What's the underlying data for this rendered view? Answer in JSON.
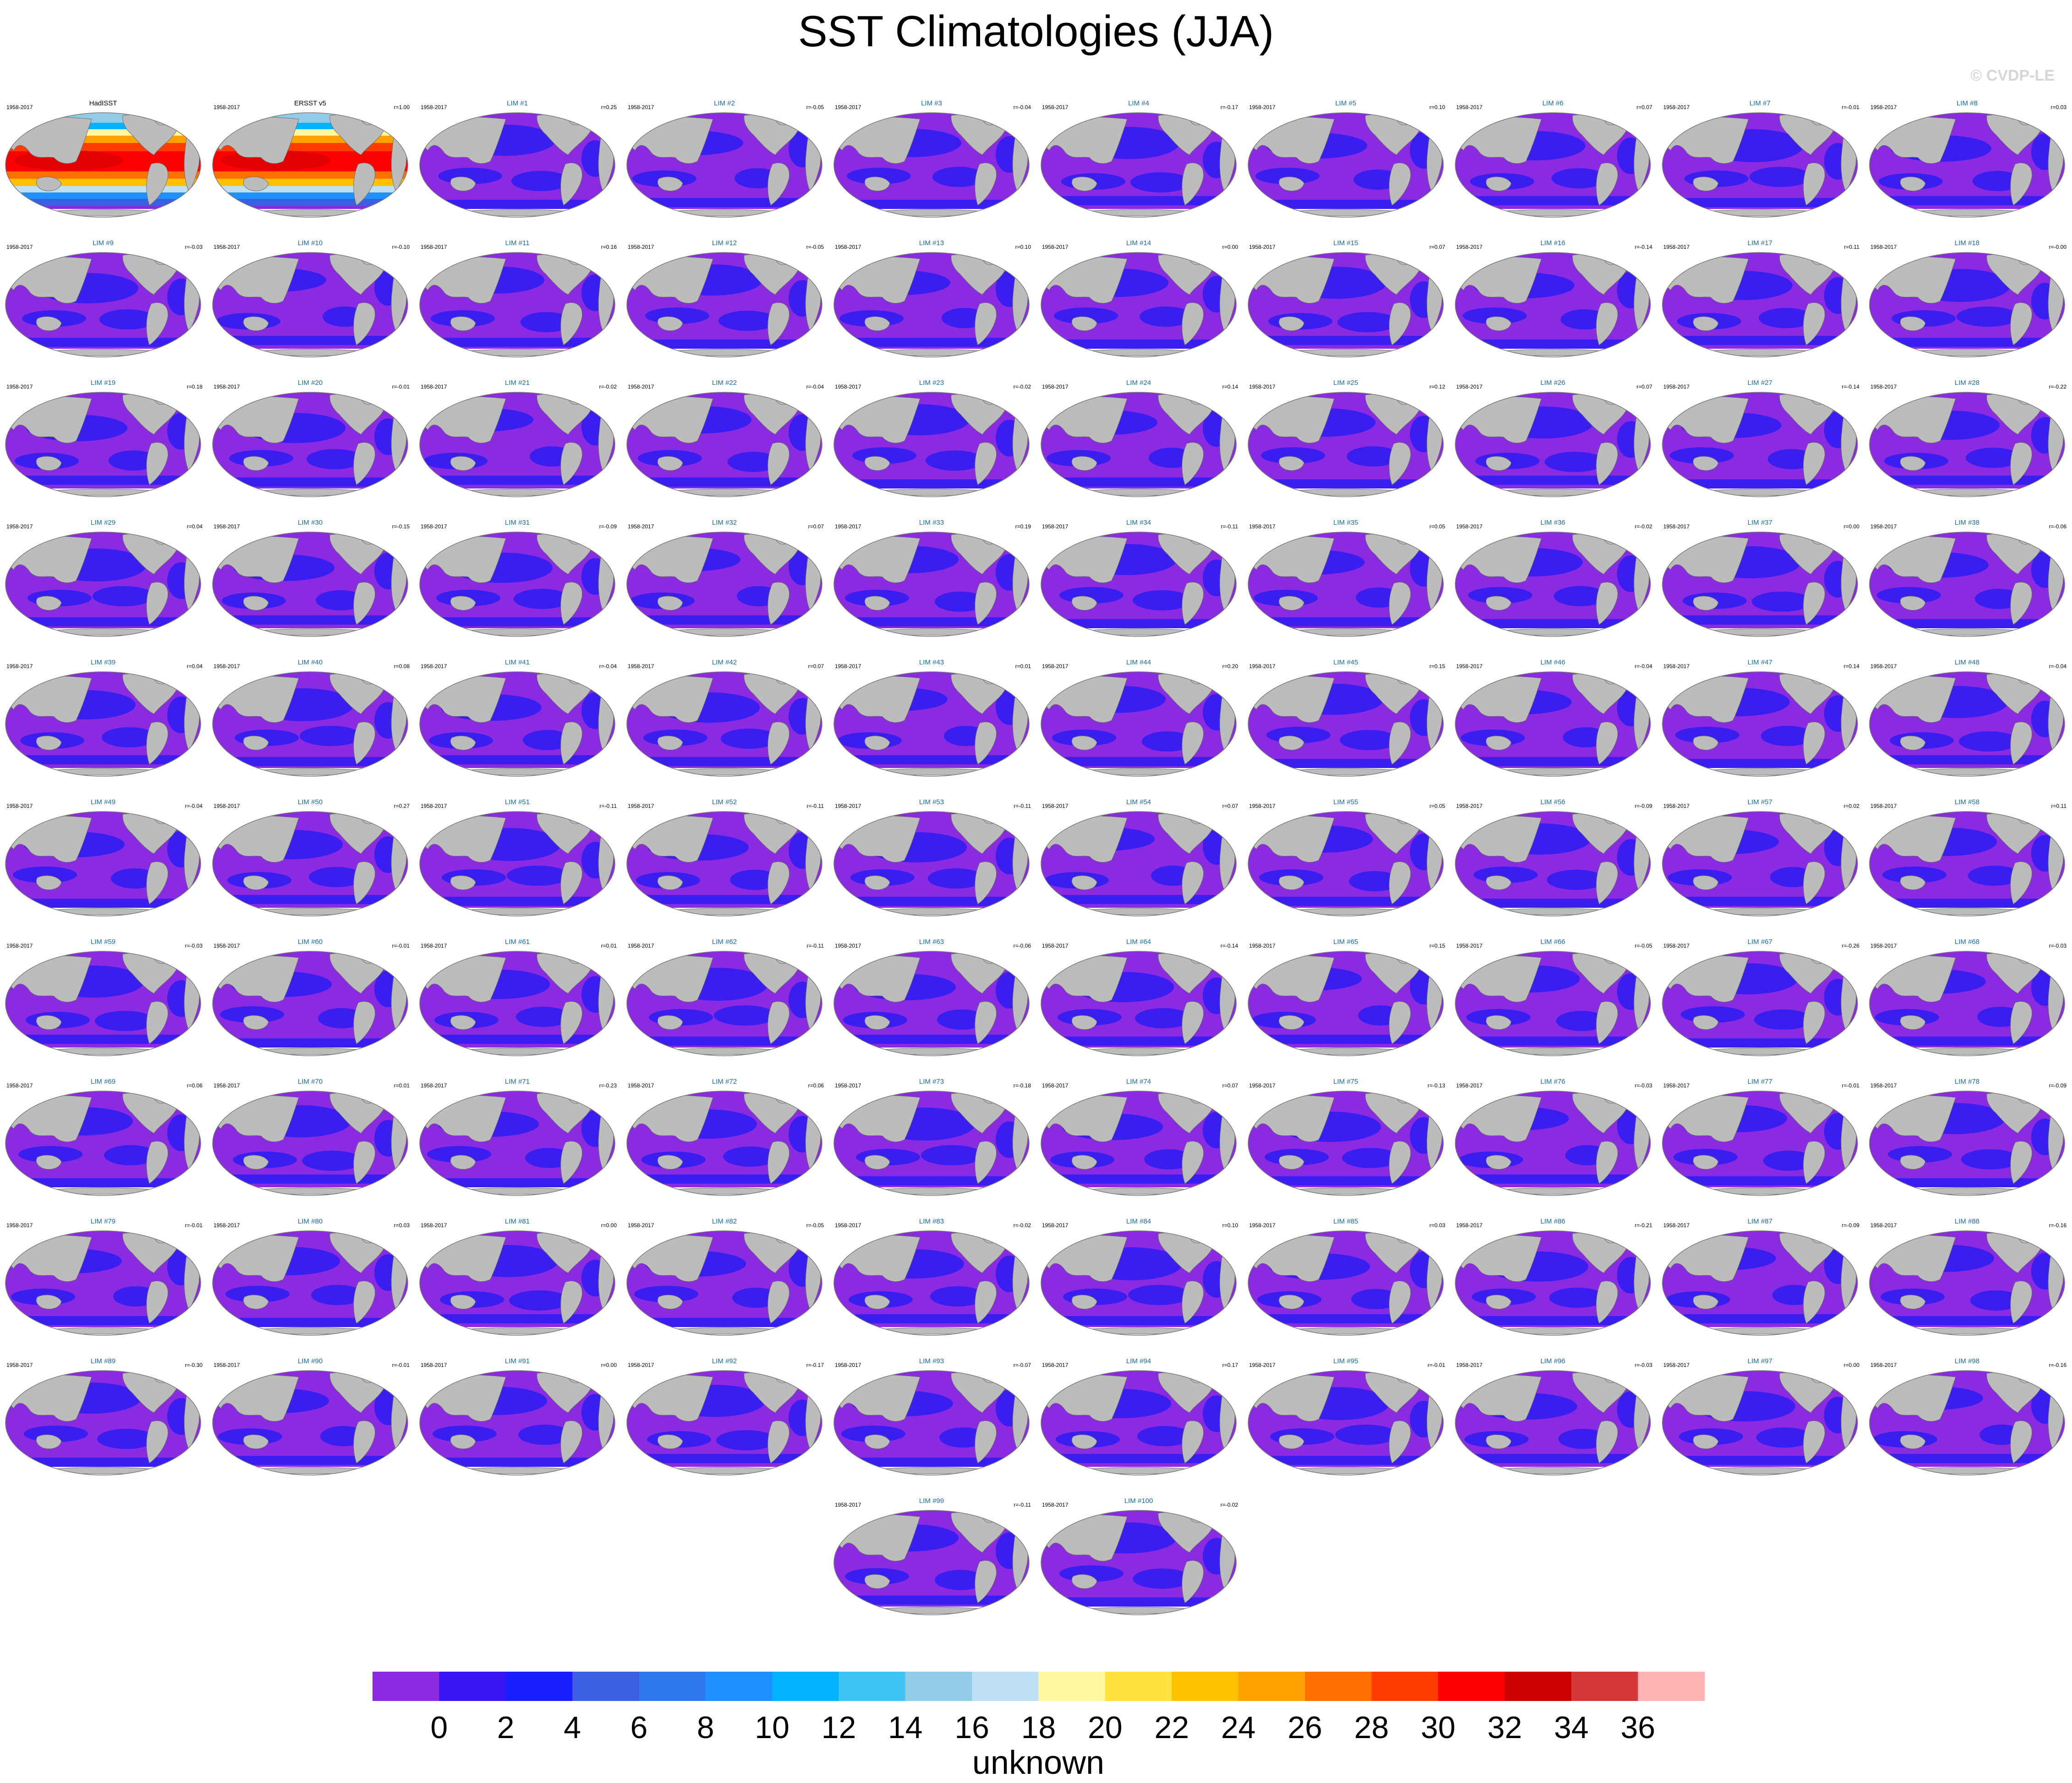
{
  "title": "SST Climatologies (JJA)",
  "credit": "© CVDP-LE",
  "colors": {
    "ocean_low": "#8a2be2",
    "ocean_mid": "#3a1df0",
    "land": "#bcbcbc",
    "title_blue": "#1a6aa0",
    "panel_border": "#7a7a7a",
    "sea_ice_gap": "#ffffff"
  },
  "colorbar": {
    "label": "unknown",
    "tick_labels": [
      "0",
      "2",
      "4",
      "6",
      "8",
      "10",
      "12",
      "14",
      "16",
      "18",
      "20",
      "22",
      "24",
      "26",
      "28",
      "30",
      "32",
      "34",
      "36"
    ],
    "colors": [
      "#8a2be2",
      "#3a14f0",
      "#1a1eff",
      "#3c5ee0",
      "#2f78ee",
      "#1e90ff",
      "#00b2ff",
      "#40c4f4",
      "#90cce6",
      "#bde0f2",
      "#fff8a0",
      "#ffe140",
      "#ffc000",
      "#ffa000",
      "#ff7000",
      "#ff3c00",
      "#ff0000",
      "#cc0000",
      "#d43838",
      "#ffb3b3"
    ]
  },
  "chart_data": {
    "type": "heatmap",
    "title": "SST Climatologies (JJA)",
    "colorbar_label": "unknown",
    "colorbar_levels": [
      0,
      2,
      4,
      6,
      8,
      10,
      12,
      14,
      16,
      18,
      20,
      22,
      24,
      26,
      28,
      30,
      32,
      34,
      36
    ],
    "panels": [
      {
        "period": "1958-2017",
        "name": "HadISST",
        "corr": ""
      },
      {
        "period": "1958-2017",
        "name": "ERSST v5",
        "corr": "r=1.00"
      },
      {
        "period": "1958-2017",
        "name": "LIM #1",
        "corr": "r=0.25"
      },
      {
        "period": "1958-2017",
        "name": "LIM #2",
        "corr": "r=-0.05"
      },
      {
        "period": "1958-2017",
        "name": "LIM #3",
        "corr": "r=-0.04"
      },
      {
        "period": "1958-2017",
        "name": "LIM #4",
        "corr": "r=-0.17"
      },
      {
        "period": "1958-2017",
        "name": "LIM #5",
        "corr": "r=0.10"
      },
      {
        "period": "1958-2017",
        "name": "LIM #6",
        "corr": "r=0.07"
      },
      {
        "period": "1958-2017",
        "name": "LIM #7",
        "corr": "r=-0.01"
      },
      {
        "period": "1958-2017",
        "name": "LIM #8",
        "corr": "r=0.03"
      },
      {
        "period": "1958-2017",
        "name": "LIM #9",
        "corr": "r=-0.03"
      },
      {
        "period": "1958-2017",
        "name": "LIM #10",
        "corr": "r=-0.10"
      },
      {
        "period": "1958-2017",
        "name": "LIM #11",
        "corr": "r=0.16"
      },
      {
        "period": "1958-2017",
        "name": "LIM #12",
        "corr": "r=-0.05"
      },
      {
        "period": "1958-2017",
        "name": "LIM #13",
        "corr": "r=0.10"
      },
      {
        "period": "1958-2017",
        "name": "LIM #14",
        "corr": "r=0.00"
      },
      {
        "period": "1958-2017",
        "name": "LIM #15",
        "corr": "r=0.07"
      },
      {
        "period": "1958-2017",
        "name": "LIM #16",
        "corr": "r=-0.14"
      },
      {
        "period": "1958-2017",
        "name": "LIM #17",
        "corr": "r=0.11"
      },
      {
        "period": "1958-2017",
        "name": "LIM #18",
        "corr": "r=-0.00"
      },
      {
        "period": "1958-2017",
        "name": "LIM #19",
        "corr": "r=0.18"
      },
      {
        "period": "1958-2017",
        "name": "LIM #20",
        "corr": "r=-0.01"
      },
      {
        "period": "1958-2017",
        "name": "LIM #21",
        "corr": "r=-0.02"
      },
      {
        "period": "1958-2017",
        "name": "LIM #22",
        "corr": "r=-0.04"
      },
      {
        "period": "1958-2017",
        "name": "LIM #23",
        "corr": "r=-0.02"
      },
      {
        "period": "1958-2017",
        "name": "LIM #24",
        "corr": "r=0.14"
      },
      {
        "period": "1958-2017",
        "name": "LIM #25",
        "corr": "r=0.12"
      },
      {
        "period": "1958-2017",
        "name": "LIM #26",
        "corr": "r=0.07"
      },
      {
        "period": "1958-2017",
        "name": "LIM #27",
        "corr": "r=-0.14"
      },
      {
        "period": "1958-2017",
        "name": "LIM #28",
        "corr": "r=-0.22"
      },
      {
        "period": "1958-2017",
        "name": "LIM #29",
        "corr": "r=0.04"
      },
      {
        "period": "1958-2017",
        "name": "LIM #30",
        "corr": "r=-0.15"
      },
      {
        "period": "1958-2017",
        "name": "LIM #31",
        "corr": "r=-0.09"
      },
      {
        "period": "1958-2017",
        "name": "LIM #32",
        "corr": "r=0.07"
      },
      {
        "period": "1958-2017",
        "name": "LIM #33",
        "corr": "r=0.19"
      },
      {
        "period": "1958-2017",
        "name": "LIM #34",
        "corr": "r=-0.11"
      },
      {
        "period": "1958-2017",
        "name": "LIM #35",
        "corr": "r=0.05"
      },
      {
        "period": "1958-2017",
        "name": "LIM #36",
        "corr": "r=-0.02"
      },
      {
        "period": "1958-2017",
        "name": "LIM #37",
        "corr": "r=0.00"
      },
      {
        "period": "1958-2017",
        "name": "LIM #38",
        "corr": "r=-0.06"
      },
      {
        "period": "1958-2017",
        "name": "LIM #39",
        "corr": "r=0.04"
      },
      {
        "period": "1958-2017",
        "name": "LIM #40",
        "corr": "r=0.08"
      },
      {
        "period": "1958-2017",
        "name": "LIM #41",
        "corr": "r=-0.04"
      },
      {
        "period": "1958-2017",
        "name": "LIM #42",
        "corr": "r=0.07"
      },
      {
        "period": "1958-2017",
        "name": "LIM #43",
        "corr": "r=0.01"
      },
      {
        "period": "1958-2017",
        "name": "LIM #44",
        "corr": "r=0.20"
      },
      {
        "period": "1958-2017",
        "name": "LIM #45",
        "corr": "r=0.15"
      },
      {
        "period": "1958-2017",
        "name": "LIM #46",
        "corr": "r=-0.04"
      },
      {
        "period": "1958-2017",
        "name": "LIM #47",
        "corr": "r=0.14"
      },
      {
        "period": "1958-2017",
        "name": "LIM #48",
        "corr": "r=-0.04"
      },
      {
        "period": "1958-2017",
        "name": "LIM #49",
        "corr": "r=-0.04"
      },
      {
        "period": "1958-2017",
        "name": "LIM #50",
        "corr": "r=0.27"
      },
      {
        "period": "1958-2017",
        "name": "LIM #51",
        "corr": "r=-0.11"
      },
      {
        "period": "1958-2017",
        "name": "LIM #52",
        "corr": "r=-0.11"
      },
      {
        "period": "1958-2017",
        "name": "LIM #53",
        "corr": "r=-0.11"
      },
      {
        "period": "1958-2017",
        "name": "LIM #54",
        "corr": "r=0.07"
      },
      {
        "period": "1958-2017",
        "name": "LIM #55",
        "corr": "r=0.05"
      },
      {
        "period": "1958-2017",
        "name": "LIM #56",
        "corr": "r=-0.09"
      },
      {
        "period": "1958-2017",
        "name": "LIM #57",
        "corr": "r=0.02"
      },
      {
        "period": "1958-2017",
        "name": "LIM #58",
        "corr": "r=0.11"
      },
      {
        "period": "1958-2017",
        "name": "LIM #59",
        "corr": "r=-0.03"
      },
      {
        "period": "1958-2017",
        "name": "LIM #60",
        "corr": "r=-0.01"
      },
      {
        "period": "1958-2017",
        "name": "LIM #61",
        "corr": "r=0.01"
      },
      {
        "period": "1958-2017",
        "name": "LIM #62",
        "corr": "r=-0.11"
      },
      {
        "period": "1958-2017",
        "name": "LIM #63",
        "corr": "r=-0.06"
      },
      {
        "period": "1958-2017",
        "name": "LIM #64",
        "corr": "r=-0.14"
      },
      {
        "period": "1958-2017",
        "name": "LIM #65",
        "corr": "r=0.15"
      },
      {
        "period": "1958-2017",
        "name": "LIM #66",
        "corr": "r=-0.05"
      },
      {
        "period": "1958-2017",
        "name": "LIM #67",
        "corr": "r=-0.26"
      },
      {
        "period": "1958-2017",
        "name": "LIM #68",
        "corr": "r=-0.03"
      },
      {
        "period": "1958-2017",
        "name": "LIM #69",
        "corr": "r=0.06"
      },
      {
        "period": "1958-2017",
        "name": "LIM #70",
        "corr": "r=0.01"
      },
      {
        "period": "1958-2017",
        "name": "LIM #71",
        "corr": "r=-0.23"
      },
      {
        "period": "1958-2017",
        "name": "LIM #72",
        "corr": "r=0.06"
      },
      {
        "period": "1958-2017",
        "name": "LIM #73",
        "corr": "r=-0.18"
      },
      {
        "period": "1958-2017",
        "name": "LIM #74",
        "corr": "r=0.07"
      },
      {
        "period": "1958-2017",
        "name": "LIM #75",
        "corr": "r=-0.13"
      },
      {
        "period": "1958-2017",
        "name": "LIM #76",
        "corr": "r=-0.03"
      },
      {
        "period": "1958-2017",
        "name": "LIM #77",
        "corr": "r=-0.01"
      },
      {
        "period": "1958-2017",
        "name": "LIM #78",
        "corr": "r=-0.09"
      },
      {
        "period": "1958-2017",
        "name": "LIM #79",
        "corr": "r=-0.01"
      },
      {
        "period": "1958-2017",
        "name": "LIM #80",
        "corr": "r=0.03"
      },
      {
        "period": "1958-2017",
        "name": "LIM #81",
        "corr": "r=0.00"
      },
      {
        "period": "1958-2017",
        "name": "LIM #82",
        "corr": "r=-0.05"
      },
      {
        "period": "1958-2017",
        "name": "LIM #83",
        "corr": "r=-0.02"
      },
      {
        "period": "1958-2017",
        "name": "LIM #84",
        "corr": "r=0.10"
      },
      {
        "period": "1958-2017",
        "name": "LIM #85",
        "corr": "r=0.03"
      },
      {
        "period": "1958-2017",
        "name": "LIM #86",
        "corr": "r=-0.21"
      },
      {
        "period": "1958-2017",
        "name": "LIM #87",
        "corr": "r=-0.09"
      },
      {
        "period": "1958-2017",
        "name": "LIM #88",
        "corr": "r=-0.16"
      },
      {
        "period": "1958-2017",
        "name": "LIM #89",
        "corr": "r=-0.30"
      },
      {
        "period": "1958-2017",
        "name": "LIM #90",
        "corr": "r=-0.01"
      },
      {
        "period": "1958-2017",
        "name": "LIM #91",
        "corr": "r=0.00"
      },
      {
        "period": "1958-2017",
        "name": "LIM #92",
        "corr": "r=-0.17"
      },
      {
        "period": "1958-2017",
        "name": "LIM #93",
        "corr": "r=-0.07"
      },
      {
        "period": "1958-2017",
        "name": "LIM #94",
        "corr": "r=0.17"
      },
      {
        "period": "1958-2017",
        "name": "LIM #95",
        "corr": "r=-0.01"
      },
      {
        "period": "1958-2017",
        "name": "LIM #96",
        "corr": "r=-0.03"
      },
      {
        "period": "1958-2017",
        "name": "LIM #97",
        "corr": "r=0.00"
      },
      {
        "period": "1958-2017",
        "name": "LIM #98",
        "corr": "r=-0.16"
      },
      {
        "period": "1958-2017",
        "name": "LIM #99",
        "corr": "r=-0.11"
      },
      {
        "period": "1958-2017",
        "name": "LIM #100",
        "corr": "r=-0.02"
      }
    ]
  }
}
